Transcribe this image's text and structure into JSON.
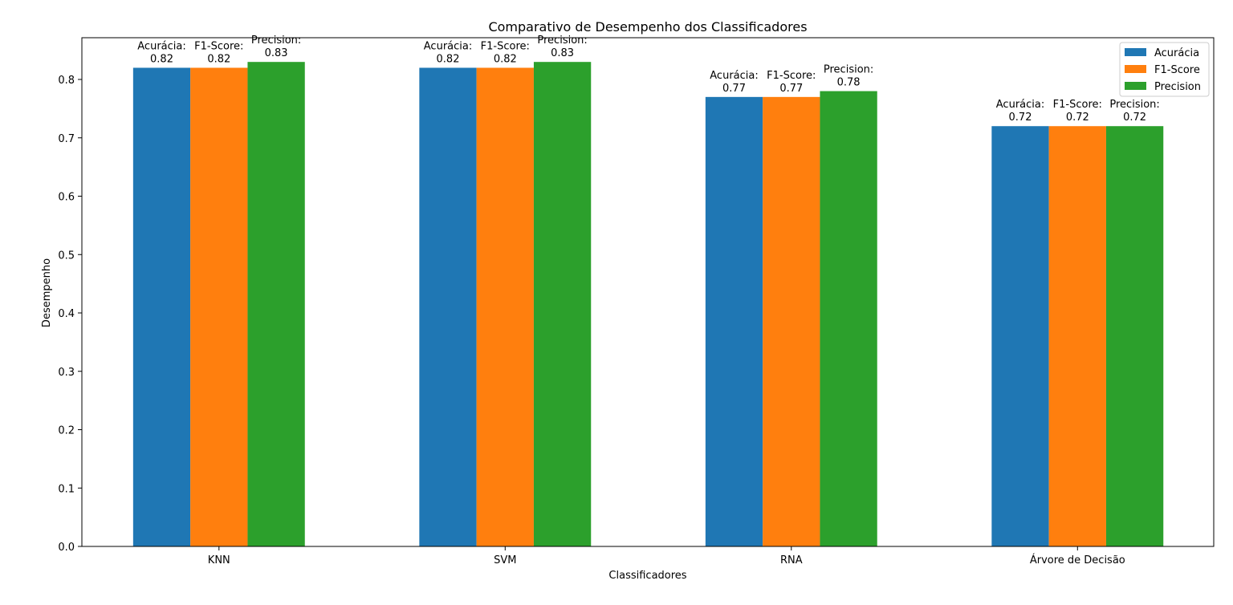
{
  "chart_data": {
    "type": "bar",
    "title": "Comparativo de Desempenho dos Classificadores",
    "xlabel": "Classificadores",
    "ylabel": "Desempenho",
    "categories": [
      "KNN",
      "SVM",
      "RNA",
      "Árvore de Decisão"
    ],
    "series": [
      {
        "name": "Acurácia",
        "label_prefix": "Acurácia:",
        "color": "#1f77b4",
        "values": [
          0.82,
          0.82,
          0.77,
          0.72
        ],
        "value_labels": [
          "0.82",
          "0.82",
          "0.77",
          "0.72"
        ]
      },
      {
        "name": "F1-Score",
        "label_prefix": "F1-Score:",
        "color": "#ff7f0e",
        "values": [
          0.82,
          0.82,
          0.77,
          0.72
        ],
        "value_labels": [
          "0.82",
          "0.82",
          "0.77",
          "0.72"
        ]
      },
      {
        "name": "Precision",
        "label_prefix": "Precision:",
        "color": "#2ca02c",
        "values": [
          0.83,
          0.83,
          0.78,
          0.72
        ],
        "value_labels": [
          "0.83",
          "0.83",
          "0.78",
          "0.72"
        ]
      }
    ],
    "ylim": [
      0,
      0.8715
    ],
    "yticks": [
      0.0,
      0.1,
      0.2,
      0.3,
      0.4,
      0.5,
      0.6,
      0.7,
      0.8
    ],
    "ytick_labels": [
      "0.0",
      "0.1",
      "0.2",
      "0.3",
      "0.4",
      "0.5",
      "0.6",
      "0.7",
      "0.8"
    ],
    "grid": false,
    "legend_position": "top-right"
  }
}
